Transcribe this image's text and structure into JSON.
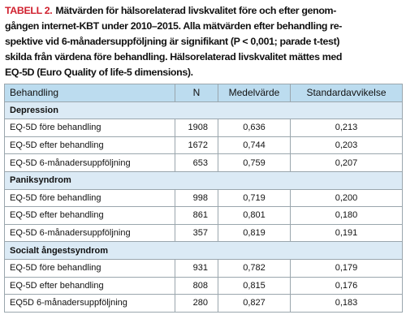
{
  "caption": {
    "label": "TABELL 2.",
    "lines": [
      "Mätvärden för hälsorelaterad livskvalitet före och efter genom-",
      "gången internet-KBT under 2010–2015. Alla mätvärden efter behandling re-",
      "spektive vid 6-månadersuppföljning är signifikant (P < 0,001; parade t-test)",
      "skilda från värdena före behandling. Hälsorelaterad livskvalitet mättes med",
      "EQ-5D (Euro Quality of life-5 dimensions)."
    ]
  },
  "table": {
    "columns": [
      "Behandling",
      "N",
      "Medelvärde",
      "Standardavvikelse"
    ],
    "groups": [
      {
        "title": "Depression",
        "rows": [
          [
            "EQ-5D före behandling",
            "1908",
            "0,636",
            "0,213"
          ],
          [
            "EQ-5D efter behandling",
            "1672",
            "0,744",
            "0,203"
          ],
          [
            "EQ-5D 6-månadersuppföljning",
            "653",
            "0,759",
            "0,207"
          ]
        ]
      },
      {
        "title": "Paniksyndrom",
        "rows": [
          [
            "EQ-5D före behandling",
            "998",
            "0,719",
            "0,200"
          ],
          [
            "EQ-5D efter behandling",
            "861",
            "0,801",
            "0,180"
          ],
          [
            "EQ-5D 6-månadersuppföljning",
            "357",
            "0,819",
            "0,191"
          ]
        ]
      },
      {
        "title": "Socialt ångestsyndrom",
        "rows": [
          [
            "EQ-5D före behandling",
            "931",
            "0,782",
            "0,179"
          ],
          [
            "EQ-5D efter behandling",
            "808",
            "0,815",
            "0,176"
          ],
          [
            "EQ5D 6-månadersuppföljning",
            "280",
            "0,827",
            "0,183"
          ]
        ]
      }
    ]
  }
}
